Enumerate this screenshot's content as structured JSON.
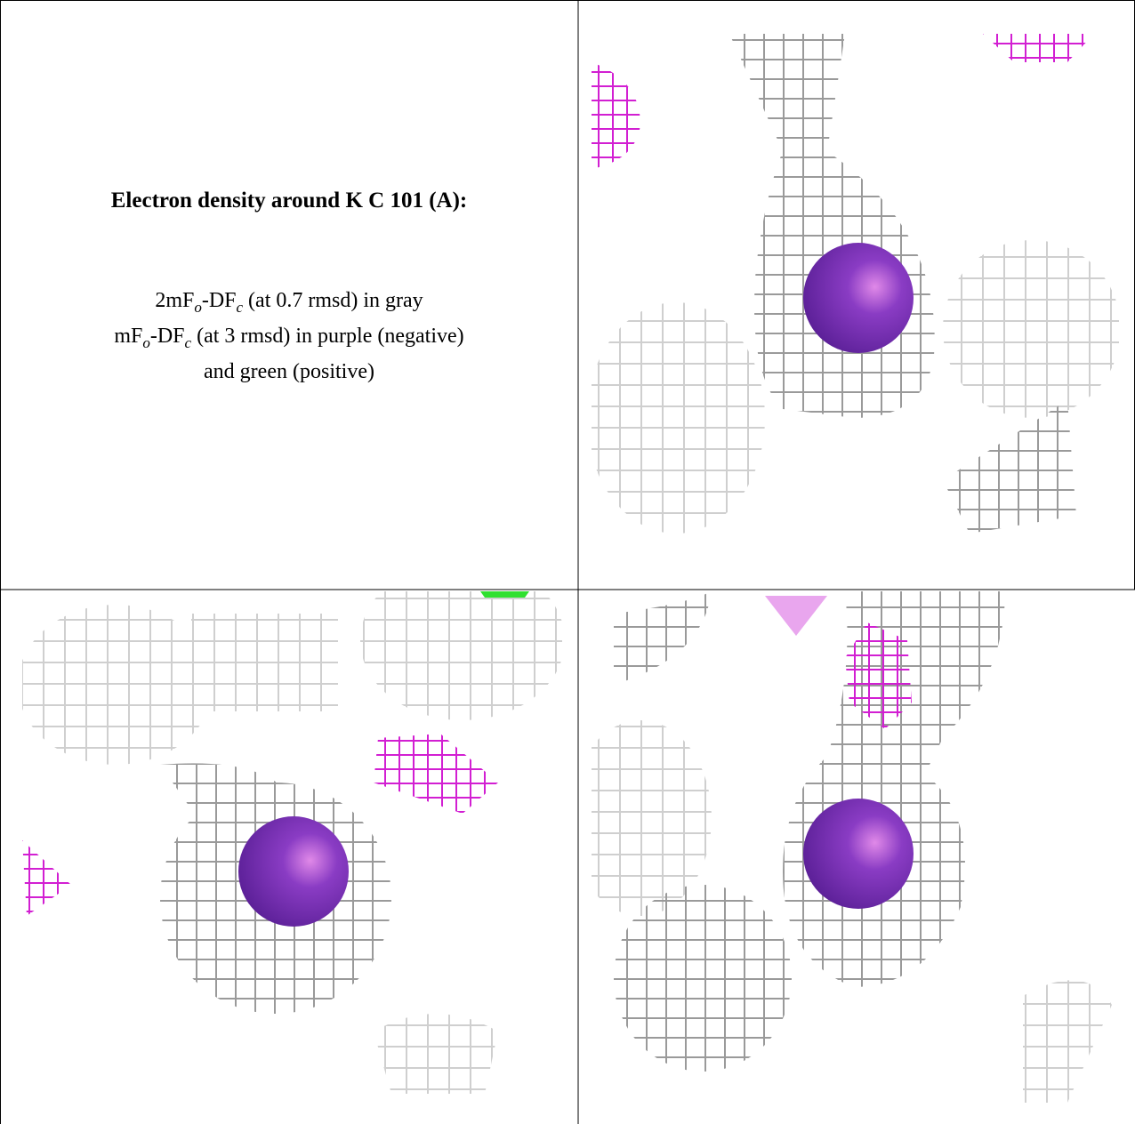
{
  "title": "Electron density around K C 101 (A):",
  "legend": [
    {
      "main": "2mF",
      "sub1": "o",
      "mid": "-DF",
      "sub2": "c",
      "rest": " (at 0.7 rmsd) in gray"
    },
    {
      "main": "mF",
      "sub1": "o",
      "mid": "-DF",
      "sub2": "c",
      "rest": " (at 3 rmsd) in purple (negative)"
    },
    {
      "rest": "and green (positive)"
    }
  ]
}
